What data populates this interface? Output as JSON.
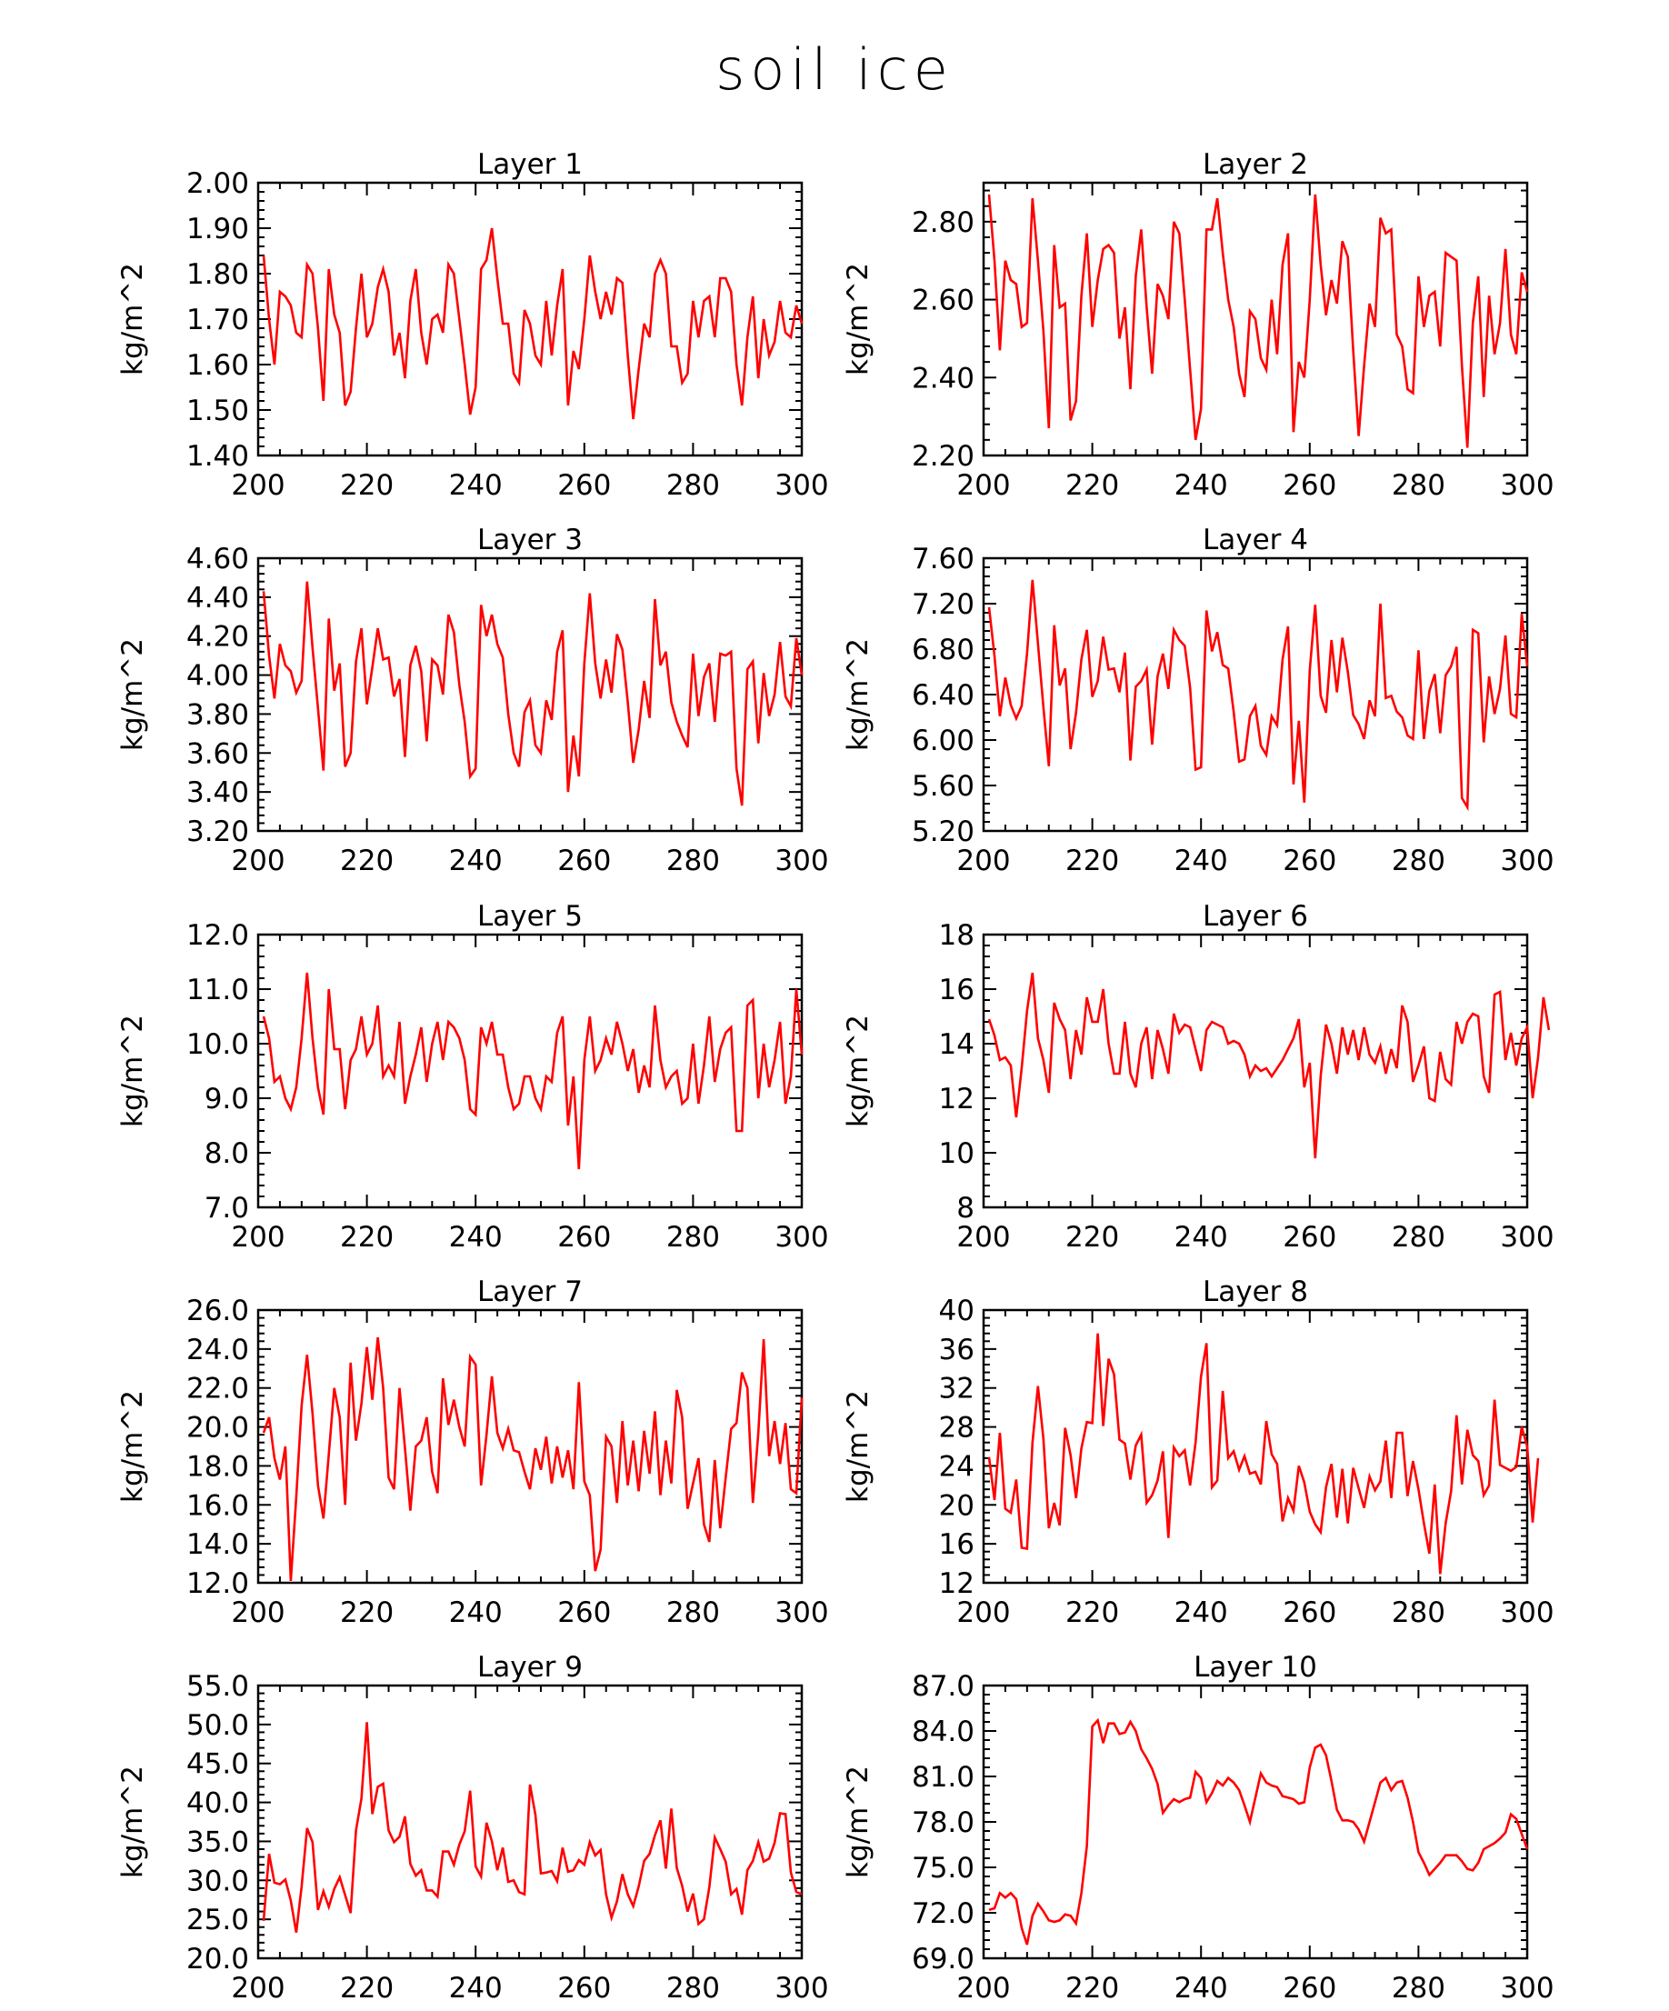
{
  "title": "soil ice",
  "colors": {
    "line": "#ff0000",
    "axis": "#000000",
    "background": "#ffffff"
  },
  "chart_data": [
    {
      "type": "line",
      "title": "Layer 1",
      "ylabel": "kg/m^2",
      "xlim": [
        200,
        300
      ],
      "ylim": [
        1.4,
        2.0
      ],
      "xticks": [
        "200",
        "220",
        "240",
        "260",
        "280",
        "300"
      ],
      "yticks": [
        "1.40",
        "1.50",
        "1.60",
        "1.70",
        "1.80",
        "1.90",
        "2.00"
      ],
      "x_start": 201,
      "values": [
        1.84,
        1.7,
        1.6,
        1.76,
        1.75,
        1.73,
        1.67,
        1.66,
        1.82,
        1.8,
        1.68,
        1.52,
        1.81,
        1.71,
        1.67,
        1.51,
        1.54,
        1.68,
        1.8,
        1.66,
        1.69,
        1.77,
        1.81,
        1.76,
        1.62,
        1.67,
        1.57,
        1.74,
        1.81,
        1.67,
        1.6,
        1.7,
        1.71,
        1.67,
        1.82,
        1.8,
        1.7,
        1.6,
        1.49,
        1.55,
        1.81,
        1.83,
        1.9,
        1.79,
        1.69,
        1.69,
        1.58,
        1.56,
        1.72,
        1.69,
        1.62,
        1.6,
        1.74,
        1.62,
        1.73,
        1.81,
        1.51,
        1.63,
        1.59,
        1.7,
        1.84,
        1.76,
        1.7,
        1.76,
        1.71,
        1.79,
        1.78,
        1.62,
        1.48,
        1.59,
        1.69,
        1.66,
        1.8,
        1.83,
        1.8,
        1.64,
        1.64,
        1.56,
        1.58,
        1.74,
        1.66,
        1.74,
        1.75,
        1.66,
        1.79,
        1.79,
        1.76,
        1.6,
        1.51,
        1.66,
        1.75,
        1.57,
        1.7,
        1.62,
        1.65,
        1.74,
        1.67,
        1.66,
        1.73,
        1.69
      ]
    },
    {
      "type": "line",
      "title": "Layer 2",
      "ylabel": "kg/m^2",
      "xlim": [
        200,
        300
      ],
      "ylim": [
        2.2,
        2.9
      ],
      "xticks": [
        "200",
        "220",
        "240",
        "260",
        "280",
        "300"
      ],
      "yticks": [
        "2.20",
        "2.40",
        "2.60",
        "2.80"
      ],
      "x_start": 201,
      "values": [
        2.87,
        2.7,
        2.47,
        2.7,
        2.65,
        2.64,
        2.53,
        2.54,
        2.86,
        2.7,
        2.52,
        2.27,
        2.74,
        2.58,
        2.59,
        2.29,
        2.34,
        2.61,
        2.77,
        2.53,
        2.65,
        2.73,
        2.74,
        2.72,
        2.5,
        2.58,
        2.37,
        2.66,
        2.78,
        2.58,
        2.41,
        2.64,
        2.61,
        2.55,
        2.8,
        2.77,
        2.6,
        2.42,
        2.24,
        2.32,
        2.78,
        2.78,
        2.86,
        2.72,
        2.6,
        2.53,
        2.41,
        2.35,
        2.57,
        2.55,
        2.45,
        2.42,
        2.6,
        2.46,
        2.69,
        2.77,
        2.26,
        2.44,
        2.4,
        2.6,
        2.87,
        2.69,
        2.56,
        2.65,
        2.59,
        2.75,
        2.71,
        2.47,
        2.25,
        2.43,
        2.59,
        2.53,
        2.81,
        2.77,
        2.78,
        2.51,
        2.48,
        2.37,
        2.36,
        2.66,
        2.53,
        2.61,
        2.62,
        2.48,
        2.72,
        2.71,
        2.7,
        2.43,
        2.22,
        2.54,
        2.66,
        2.35,
        2.61,
        2.46,
        2.54,
        2.73,
        2.51,
        2.46,
        2.67,
        2.62
      ]
    },
    {
      "type": "line",
      "title": "Layer 3",
      "ylabel": "kg/m^2",
      "xlim": [
        200,
        300
      ],
      "ylim": [
        3.2,
        4.6
      ],
      "xticks": [
        "200",
        "220",
        "240",
        "260",
        "280",
        "300"
      ],
      "yticks": [
        "3.20",
        "3.40",
        "3.60",
        "3.80",
        "4.00",
        "4.20",
        "4.40",
        "4.60"
      ],
      "x_start": 201,
      "values": [
        4.43,
        4.1,
        3.88,
        4.16,
        4.05,
        4.02,
        3.91,
        3.97,
        4.48,
        4.14,
        3.83,
        3.51,
        4.29,
        3.92,
        4.06,
        3.53,
        3.6,
        4.07,
        4.24,
        3.85,
        4.04,
        4.24,
        4.08,
        4.09,
        3.89,
        3.98,
        3.58,
        4.05,
        4.15,
        4.02,
        3.66,
        4.08,
        4.05,
        3.9,
        4.31,
        4.22,
        3.95,
        3.76,
        3.48,
        3.52,
        4.36,
        4.2,
        4.31,
        4.16,
        4.09,
        3.8,
        3.6,
        3.53,
        3.81,
        3.87,
        3.64,
        3.6,
        3.87,
        3.77,
        4.12,
        4.23,
        3.4,
        3.69,
        3.48,
        4.06,
        4.42,
        4.06,
        3.88,
        4.08,
        3.91,
        4.21,
        4.13,
        3.86,
        3.55,
        3.72,
        3.97,
        3.78,
        4.39,
        4.05,
        4.12,
        3.86,
        3.76,
        3.69,
        3.63,
        4.11,
        3.79,
        3.99,
        4.06,
        3.76,
        4.11,
        4.1,
        4.12,
        3.52,
        3.33,
        4.03,
        4.07,
        3.65,
        4.01,
        3.79,
        3.9,
        4.17,
        3.89,
        3.84,
        4.19,
        4.0
      ]
    },
    {
      "type": "line",
      "title": "Layer 4",
      "ylabel": "kg/m^2",
      "xlim": [
        200,
        300
      ],
      "ylim": [
        5.2,
        7.6
      ],
      "xticks": [
        "200",
        "220",
        "240",
        "260",
        "280",
        "300"
      ],
      "yticks": [
        "5.20",
        "5.60",
        "6.00",
        "6.40",
        "6.80",
        "7.20",
        "7.60"
      ],
      "x_start": 201,
      "values": [
        7.17,
        6.74,
        6.21,
        6.55,
        6.31,
        6.19,
        6.3,
        6.76,
        7.41,
        6.85,
        6.29,
        5.77,
        7.01,
        6.48,
        6.63,
        5.92,
        6.24,
        6.71,
        6.97,
        6.38,
        6.52,
        6.91,
        6.62,
        6.63,
        6.42,
        6.77,
        5.82,
        6.47,
        6.52,
        6.62,
        5.96,
        6.56,
        6.76,
        6.45,
        6.97,
        6.88,
        6.83,
        6.46,
        5.74,
        5.76,
        7.14,
        6.78,
        6.95,
        6.66,
        6.63,
        6.25,
        5.81,
        5.83,
        6.21,
        6.3,
        5.95,
        5.87,
        6.21,
        6.13,
        6.71,
        7.0,
        5.61,
        6.17,
        5.45,
        6.61,
        7.19,
        6.39,
        6.24,
        6.88,
        6.42,
        6.9,
        6.6,
        6.22,
        6.14,
        6.01,
        6.35,
        6.21,
        7.2,
        6.37,
        6.39,
        6.25,
        6.2,
        6.04,
        6.01,
        6.79,
        6.01,
        6.43,
        6.58,
        6.06,
        6.57,
        6.65,
        6.82,
        5.49,
        5.41,
        6.97,
        6.94,
        5.98,
        6.56,
        6.23,
        6.45,
        6.92,
        6.23,
        6.2,
        7.11,
        6.65
      ]
    },
    {
      "type": "line",
      "title": "Layer 5",
      "ylabel": "kg/m^2",
      "xlim": [
        200,
        300
      ],
      "ylim": [
        7.0,
        12.0
      ],
      "xticks": [
        "200",
        "220",
        "240",
        "260",
        "280",
        "300"
      ],
      "yticks": [
        "7.0",
        "8.0",
        "9.0",
        "10.0",
        "11.0",
        "12.0"
      ],
      "x_start": 201,
      "values": [
        10.5,
        10.1,
        9.3,
        9.4,
        9.0,
        8.8,
        9.2,
        10.1,
        11.3,
        10.1,
        9.2,
        8.7,
        11.0,
        9.9,
        9.9,
        8.8,
        9.7,
        9.9,
        10.5,
        9.8,
        10.0,
        10.7,
        9.4,
        9.6,
        9.4,
        10.4,
        8.9,
        9.4,
        9.8,
        10.3,
        9.3,
        10.0,
        10.4,
        9.7,
        10.4,
        10.3,
        10.1,
        9.7,
        8.8,
        8.7,
        10.3,
        10.0,
        10.4,
        9.8,
        9.8,
        9.2,
        8.8,
        8.9,
        9.4,
        9.4,
        9.0,
        8.8,
        9.4,
        9.3,
        10.2,
        10.5,
        8.5,
        9.4,
        7.7,
        9.7,
        10.5,
        9.5,
        9.7,
        10.1,
        9.8,
        10.4,
        10.0,
        9.5,
        9.9,
        9.1,
        9.6,
        9.2,
        10.7,
        9.7,
        9.2,
        9.4,
        9.5,
        8.9,
        9.0,
        10.0,
        8.9,
        9.6,
        10.5,
        9.3,
        9.9,
        10.2,
        10.3,
        8.4,
        8.4,
        10.7,
        10.8,
        9.0,
        10.0,
        9.2,
        9.7,
        10.4,
        8.9,
        9.4,
        11.0,
        9.8
      ]
    },
    {
      "type": "line",
      "title": "Layer 6",
      "ylabel": "kg/m^2",
      "xlim": [
        200,
        300
      ],
      "ylim": [
        8,
        18
      ],
      "xticks": [
        "200",
        "220",
        "240",
        "260",
        "280",
        "300"
      ],
      "yticks": [
        "8",
        "10",
        "12",
        "14",
        "16",
        "18"
      ],
      "x_start": 201,
      "values": [
        14.9,
        14.3,
        13.4,
        13.5,
        13.2,
        11.3,
        13.1,
        15.2,
        16.6,
        14.2,
        13.4,
        12.2,
        15.5,
        14.9,
        14.5,
        12.7,
        14.5,
        13.6,
        15.7,
        14.8,
        14.8,
        16.0,
        14.0,
        12.9,
        12.9,
        14.8,
        12.9,
        12.4,
        14.0,
        14.6,
        12.7,
        14.5,
        13.8,
        12.9,
        15.1,
        14.4,
        14.7,
        14.6,
        13.8,
        13.0,
        14.5,
        14.8,
        14.7,
        14.6,
        14.0,
        14.1,
        14.0,
        13.6,
        12.8,
        13.2,
        13.0,
        13.1,
        12.8,
        13.1,
        13.4,
        13.8,
        14.2,
        14.9,
        12.4,
        13.3,
        9.8,
        12.8,
        14.7,
        14.0,
        12.9,
        14.6,
        13.6,
        14.5,
        13.4,
        14.6,
        13.6,
        13.3,
        13.9,
        12.9,
        13.8,
        13.1,
        15.4,
        14.8,
        12.6,
        13.2,
        13.9,
        12.0,
        11.9,
        13.7,
        12.7,
        12.5,
        14.8,
        14.0,
        14.8,
        15.1,
        15.0,
        12.8,
        12.2,
        15.8,
        15.9,
        13.4,
        14.4,
        13.2,
        14.2,
        14.6,
        12.0,
        13.5,
        15.7,
        14.5
      ]
    },
    {
      "type": "line",
      "title": "Layer 7",
      "ylabel": "kg/m^2",
      "xlim": [
        200,
        300
      ],
      "ylim": [
        12,
        26
      ],
      "xticks": [
        "200",
        "220",
        "240",
        "260",
        "280",
        "300"
      ],
      "yticks": [
        "12.0",
        "14.0",
        "16.0",
        "18.0",
        "20.0",
        "22.0",
        "24.0",
        "26.0"
      ],
      "x_start": 201,
      "values": [
        19.7,
        20.5,
        18.4,
        17.3,
        19.0,
        12.1,
        16.4,
        21.1,
        23.7,
        20.7,
        17.0,
        15.3,
        18.6,
        22.0,
        20.5,
        16.0,
        23.3,
        19.3,
        21.2,
        24.1,
        21.4,
        24.6,
        22.0,
        17.4,
        16.8,
        22.0,
        18.9,
        15.7,
        19.0,
        19.3,
        20.5,
        17.7,
        16.6,
        22.5,
        20.1,
        21.4,
        20.0,
        19.0,
        23.6,
        23.2,
        17.0,
        19.6,
        22.6,
        19.7,
        18.9,
        19.9,
        18.8,
        18.7,
        17.7,
        16.8,
        18.9,
        17.8,
        19.5,
        17.1,
        19.0,
        17.4,
        18.8,
        16.8,
        22.3,
        17.2,
        16.5,
        12.6,
        13.7,
        19.5,
        19.0,
        16.1,
        20.3,
        17.0,
        19.3,
        16.7,
        19.8,
        17.6,
        20.8,
        16.5,
        19.3,
        17.1,
        21.9,
        20.5,
        15.8,
        17.1,
        18.4,
        15.0,
        14.1,
        18.3,
        14.8,
        17.4,
        19.9,
        20.2,
        22.8,
        22.0,
        16.1,
        19.7,
        24.5,
        18.5,
        20.3,
        18.1,
        20.2,
        16.8,
        16.6,
        21.5
      ]
    },
    {
      "type": "line",
      "title": "Layer 8",
      "ylabel": "kg/m^2",
      "xlim": [
        200,
        300
      ],
      "ylim": [
        12,
        40
      ],
      "xticks": [
        "200",
        "220",
        "240",
        "260",
        "280",
        "300"
      ],
      "yticks": [
        "12",
        "16",
        "20",
        "24",
        "28",
        "32",
        "36",
        "40"
      ],
      "x_start": 201,
      "values": [
        24.9,
        20.5,
        27.4,
        19.6,
        19.2,
        22.6,
        15.6,
        15.5,
        26.4,
        32.2,
        26.8,
        17.6,
        20.2,
        17.9,
        27.9,
        25.1,
        20.7,
        25.8,
        28.5,
        28.4,
        37.6,
        28.1,
        35.0,
        33.4,
        26.7,
        26.3,
        22.6,
        26.1,
        27.2,
        20.2,
        21.0,
        22.5,
        25.5,
        16.6,
        25.9,
        25.0,
        25.6,
        22.0,
        26.4,
        33.2,
        36.6,
        21.8,
        22.5,
        31.7,
        24.8,
        25.5,
        23.6,
        25.0,
        23.2,
        23.4,
        22.1,
        28.6,
        25.2,
        24.2,
        18.3,
        20.7,
        19.4,
        24.0,
        22.3,
        19.3,
        18.0,
        17.2,
        21.8,
        24.2,
        18.7,
        23.7,
        18.1,
        23.8,
        21.7,
        19.7,
        22.9,
        21.5,
        22.4,
        26.6,
        20.7,
        27.4,
        27.4,
        20.9,
        24.5,
        21.6,
        18.1,
        15.0,
        22.1,
        12.9,
        18.1,
        21.4,
        29.2,
        22.1,
        27.7,
        25.1,
        24.5,
        21.0,
        22.0,
        30.8,
        24.1,
        23.8,
        23.5,
        23.9,
        28.0,
        26.0,
        18.2,
        24.8
      ]
    },
    {
      "type": "line",
      "title": "Layer 9",
      "ylabel": "kg/m^2",
      "xlim": [
        200,
        300
      ],
      "ylim": [
        20,
        55
      ],
      "xticks": [
        "200",
        "220",
        "240",
        "260",
        "280",
        "300"
      ],
      "yticks": [
        "20.0",
        "25.0",
        "30.0",
        "35.0",
        "40.0",
        "45.0",
        "50.0",
        "55.0"
      ],
      "x_start": 201,
      "values": [
        24.8,
        33.4,
        29.7,
        29.5,
        30.1,
        27.4,
        23.3,
        29.2,
        36.7,
        34.9,
        26.2,
        28.6,
        26.6,
        28.9,
        30.4,
        28.1,
        25.8,
        36.4,
        40.5,
        50.3,
        38.5,
        42.0,
        42.4,
        36.4,
        34.9,
        35.6,
        38.2,
        32.1,
        30.6,
        31.3,
        28.7,
        28.7,
        27.9,
        33.7,
        33.7,
        32.0,
        34.6,
        36.3,
        41.5,
        31.8,
        30.5,
        37.4,
        35.0,
        31.3,
        34.2,
        29.8,
        30.0,
        28.5,
        28.2,
        42.3,
        38.4,
        30.9,
        31.0,
        31.2,
        29.9,
        34.2,
        31.1,
        31.3,
        32.6,
        32.0,
        34.9,
        33.2,
        33.9,
        28.2,
        25.2,
        27.3,
        30.8,
        28.2,
        26.7,
        29.2,
        32.5,
        33.4,
        35.8,
        37.7,
        31.5,
        39.2,
        31.6,
        29.3,
        26.0,
        28.3,
        24.4,
        25.0,
        29.1,
        35.5,
        34.0,
        32.4,
        28.2,
        28.9,
        25.6,
        31.3,
        32.5,
        34.9,
        32.4,
        32.8,
        34.8,
        38.6,
        38.5,
        31.0,
        28.5,
        28.2
      ]
    },
    {
      "type": "line",
      "title": "Layer 10",
      "ylabel": "kg/m^2",
      "xlim": [
        200,
        300
      ],
      "ylim": [
        69,
        87
      ],
      "xticks": [
        "200",
        "220",
        "240",
        "260",
        "280",
        "300"
      ],
      "yticks": [
        "69.0",
        "72.0",
        "75.0",
        "78.0",
        "81.0",
        "84.0",
        "87.0"
      ],
      "x_start": 201,
      "values": [
        72.2,
        72.3,
        73.3,
        73.0,
        73.3,
        72.9,
        71.0,
        69.9,
        71.8,
        72.6,
        72.1,
        71.5,
        71.4,
        71.5,
        71.9,
        71.8,
        71.3,
        73.3,
        76.4,
        84.3,
        84.7,
        83.2,
        84.5,
        84.5,
        83.8,
        83.9,
        84.6,
        84.0,
        82.8,
        82.2,
        81.5,
        80.5,
        78.6,
        79.1,
        79.5,
        79.3,
        79.5,
        79.6,
        81.3,
        80.9,
        79.3,
        79.9,
        80.7,
        80.4,
        80.9,
        80.6,
        80.1,
        79.1,
        78.0,
        79.6,
        81.2,
        80.6,
        80.4,
        80.3,
        79.7,
        79.6,
        79.5,
        79.2,
        79.3,
        81.6,
        82.9,
        83.1,
        82.4,
        80.7,
        78.8,
        78.1,
        78.1,
        78.0,
        77.5,
        76.7,
        78.0,
        79.3,
        80.6,
        80.9,
        80.1,
        80.6,
        80.7,
        79.6,
        78.0,
        76.0,
        75.3,
        74.5,
        74.9,
        75.3,
        75.8,
        75.8,
        75.8,
        75.4,
        74.9,
        74.8,
        75.3,
        76.2,
        76.4,
        76.6,
        76.9,
        77.3,
        78.5,
        78.2,
        77.2,
        76.2
      ]
    }
  ]
}
